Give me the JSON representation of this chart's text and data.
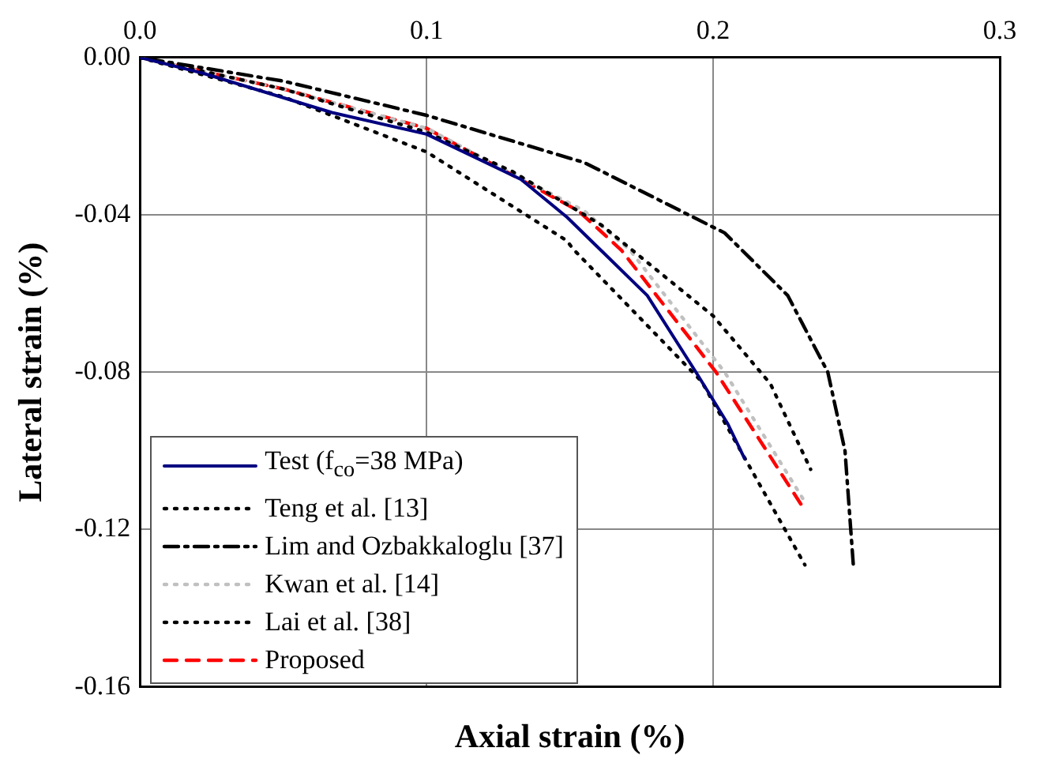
{
  "chart_data": {
    "type": "line",
    "xlabel": "Axial strain (%)",
    "ylabel": "Lateral strain (%)",
    "xlim": [
      0,
      0.3
    ],
    "ylim": [
      -0.16,
      0
    ],
    "xticks": [
      {
        "value": 0,
        "label": "0.0"
      },
      {
        "value": 0.1,
        "label": "0.1"
      },
      {
        "value": 0.2,
        "label": "0.2"
      },
      {
        "value": 0.3,
        "label": "0.3"
      }
    ],
    "yticks": [
      {
        "value": -0.16,
        "label": "-0.16"
      },
      {
        "value": -0.12,
        "label": "-0.12"
      },
      {
        "value": -0.08,
        "label": "-0.08"
      },
      {
        "value": -0.04,
        "label": "-0.04"
      },
      {
        "value": 0,
        "label": "0.00"
      }
    ],
    "grid": true,
    "legend": "bottom left",
    "marker": "none",
    "series": [
      {
        "name": "Test (f$_{co}$=38 MPa)",
        "color": "#000080",
        "line_style": "solid",
        "x": [
          0,
          0.022,
          0.067,
          0.1,
          0.133,
          0.149,
          0.177,
          0.194,
          0.205,
          0.211
        ],
        "values": [
          0,
          -0.004,
          -0.014,
          -0.0195,
          -0.031,
          -0.0406,
          -0.0605,
          -0.08,
          -0.093,
          -0.102
        ]
      },
      {
        "name": "Teng et al. [13]",
        "color": "#000000",
        "line_style": "dotted",
        "x": [
          0,
          0.05,
          0.1,
          0.13,
          0.161,
          0.2,
          0.22,
          0.234
        ],
        "values": [
          0,
          -0.008,
          -0.019,
          -0.029,
          -0.0426,
          -0.0657,
          -0.083,
          -0.1047
        ]
      },
      {
        "name": "Lim and Ozbakkaloglu [37]",
        "color": "#000000",
        "line_style": "dashdot",
        "x": [
          0,
          0.05,
          0.1,
          0.155,
          0.204,
          0.226,
          0.24,
          0.246,
          0.249
        ],
        "values": [
          0,
          -0.006,
          -0.0147,
          -0.0267,
          -0.0446,
          -0.0605,
          -0.08,
          -0.1,
          -0.13
        ]
      },
      {
        "name": "Kwan et al. [14]",
        "color": "#c0c0c0",
        "line_style": "dotted",
        "x": [
          0,
          0.05,
          0.1,
          0.155,
          0.171,
          0.204,
          0.232
        ],
        "values": [
          0,
          -0.008,
          -0.018,
          -0.039,
          -0.049,
          -0.08,
          -0.113
        ]
      },
      {
        "name": "Lai et al. [38]",
        "color": "#000000",
        "line_style": "dotted",
        "x": [
          0,
          0.05,
          0.1,
          0.149,
          0.151,
          0.196,
          0.232
        ],
        "values": [
          0,
          -0.01,
          -0.024,
          -0.0466,
          -0.0486,
          -0.0824,
          -0.129
        ]
      },
      {
        "name": "Proposed",
        "color": "#ff0000",
        "line_style": "dashed",
        "x": [
          0,
          0.05,
          0.1,
          0.153,
          0.168,
          0.201,
          0.231
        ],
        "values": [
          0,
          -0.008,
          -0.018,
          -0.039,
          -0.049,
          -0.08,
          -0.114
        ]
      }
    ]
  }
}
